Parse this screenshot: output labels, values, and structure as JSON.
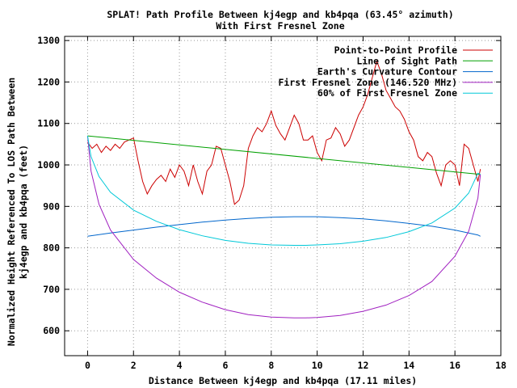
{
  "chart_data": {
    "type": "line",
    "title": "SPLAT! Path Profile Between kj4egp and kb4pqa (63.45° azimuth)",
    "subtitle": "With First Fresnel Zone",
    "xlabel": "Distance Between kj4egp and kb4pqa (17.11 miles)",
    "ylabel_lines": [
      "Normalized Height Referenced To LOS Path Between",
      "kj4egp and kb4pqa (feet)"
    ],
    "xlim": [
      -1,
      18
    ],
    "ylim": [
      540,
      1310
    ],
    "xticks": [
      "0",
      "2",
      "4",
      "6",
      "8",
      "10",
      "12",
      "14",
      "16",
      "18"
    ],
    "yticks": [
      "600",
      "700",
      "800",
      "900",
      "1000",
      "1100",
      "1200",
      "1300"
    ],
    "grid": true,
    "legend_position": "top-right",
    "series": [
      {
        "name": "Point-to-Point Profile",
        "color": "#cc0000",
        "x": [
          0,
          0.2,
          0.4,
          0.6,
          0.8,
          1.0,
          1.2,
          1.4,
          1.6,
          1.8,
          2.0,
          2.2,
          2.4,
          2.6,
          2.8,
          3.0,
          3.2,
          3.4,
          3.6,
          3.8,
          4.0,
          4.2,
          4.4,
          4.6,
          4.8,
          5.0,
          5.2,
          5.4,
          5.6,
          5.8,
          6.0,
          6.2,
          6.4,
          6.6,
          6.8,
          7.0,
          7.2,
          7.4,
          7.6,
          7.8,
          8.0,
          8.2,
          8.4,
          8.6,
          8.8,
          9.0,
          9.2,
          9.4,
          9.6,
          9.8,
          10.0,
          10.2,
          10.4,
          10.6,
          10.8,
          11.0,
          11.2,
          11.4,
          11.6,
          11.8,
          12.0,
          12.2,
          12.4,
          12.6,
          12.8,
          13.0,
          13.2,
          13.4,
          13.6,
          13.8,
          14.0,
          14.2,
          14.4,
          14.6,
          14.8,
          15.0,
          15.2,
          15.4,
          15.6,
          15.8,
          16.0,
          16.2,
          16.4,
          16.6,
          16.8,
          17.0,
          17.11
        ],
        "values": [
          1055,
          1040,
          1050,
          1030,
          1045,
          1035,
          1050,
          1040,
          1055,
          1060,
          1065,
          1010,
          960,
          930,
          950,
          965,
          975,
          960,
          990,
          970,
          1000,
          985,
          950,
          1000,
          960,
          930,
          985,
          1000,
          1045,
          1040,
          1000,
          960,
          905,
          915,
          950,
          1040,
          1070,
          1090,
          1080,
          1100,
          1130,
          1095,
          1075,
          1060,
          1090,
          1120,
          1100,
          1060,
          1060,
          1070,
          1030,
          1010,
          1060,
          1065,
          1090,
          1075,
          1045,
          1060,
          1090,
          1120,
          1140,
          1170,
          1210,
          1250,
          1220,
          1180,
          1160,
          1140,
          1130,
          1110,
          1080,
          1060,
          1020,
          1010,
          1030,
          1020,
          980,
          950,
          1000,
          1010,
          1000,
          950,
          1050,
          1040,
          1000,
          960,
          990
        ]
      },
      {
        "name": "Line of Sight Path",
        "color": "#00a000",
        "x": [
          0,
          17.11
        ],
        "values": [
          1070,
          977
        ]
      },
      {
        "name": "Earth's Curvature Contour",
        "color": "#0066cc",
        "x": [
          0,
          1,
          2,
          3,
          4,
          5,
          6,
          7,
          8,
          9,
          10,
          11,
          12,
          13,
          14,
          15,
          16,
          17,
          17.11
        ],
        "values": [
          828,
          836,
          843,
          850,
          856,
          862,
          867,
          871,
          874,
          875,
          875,
          873,
          870,
          865,
          859,
          852,
          843,
          831,
          828
        ]
      },
      {
        "name": "First Fresnel Zone (146.520 MHz)",
        "color": "#a020c0",
        "x": [
          0,
          0.15,
          0.5,
          1,
          2,
          3,
          4,
          5,
          6,
          7,
          8,
          9,
          9.5,
          10,
          11,
          12,
          13,
          14,
          15,
          16,
          16.6,
          17,
          17.11
        ],
        "values": [
          1070,
          985,
          905,
          843,
          772,
          727,
          693,
          669,
          651,
          639,
          633,
          631,
          631,
          632,
          637,
          647,
          662,
          685,
          719,
          780,
          840,
          920,
          977
        ]
      },
      {
        "name": "60% of First Fresnel Zone",
        "color": "#00c8d8",
        "x": [
          0,
          0.15,
          0.5,
          1,
          2,
          3,
          4,
          5,
          6,
          7,
          8,
          9,
          9.5,
          10,
          11,
          12,
          13,
          14,
          15,
          16,
          16.6,
          17,
          17.11
        ],
        "values": [
          1070,
          1020,
          972,
          934,
          891,
          864,
          844,
          829,
          818,
          811,
          807,
          806,
          806,
          807,
          810,
          816,
          825,
          839,
          860,
          896,
          932,
          980,
          977
        ]
      }
    ]
  }
}
